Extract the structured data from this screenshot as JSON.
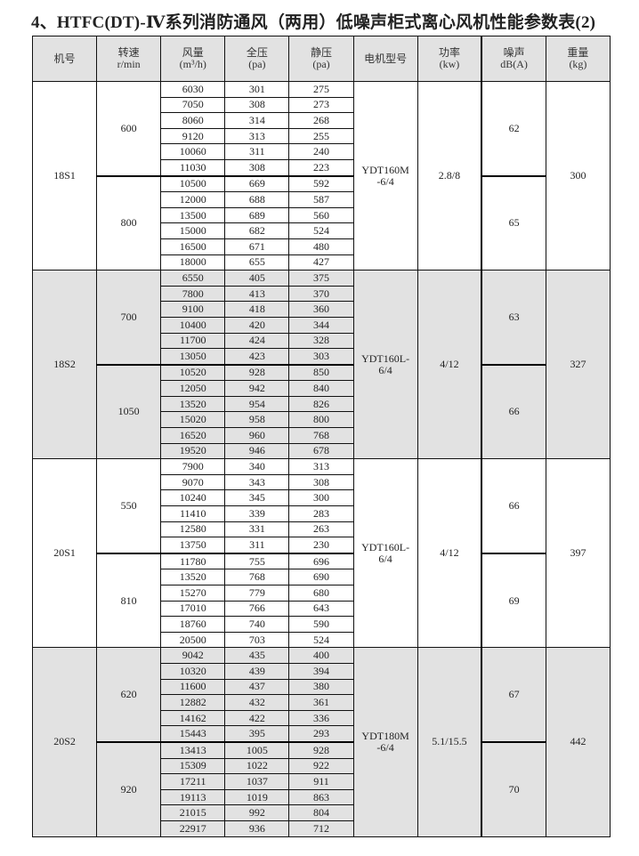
{
  "title": "4、HTFC(DT)-Ⅳ系列消防通风（两用）低噪声柜式离心风机性能参数表(2)",
  "headers": [
    {
      "l1": "机号",
      "l2": ""
    },
    {
      "l1": "转速",
      "l2": "r/min"
    },
    {
      "l1": "风量",
      "l2": "(m³/h)"
    },
    {
      "l1": "全压",
      "l2": "(pa)"
    },
    {
      "l1": "静压",
      "l2": "(pa)"
    },
    {
      "l1": "电机型号",
      "l2": ""
    },
    {
      "l1": "功率",
      "l2": "(kw)"
    },
    {
      "l1": "噪声",
      "l2": "dB(A)"
    },
    {
      "l1": "重量",
      "l2": "(kg)"
    }
  ],
  "groups": [
    {
      "model": "18S1",
      "motor": "YDT160M\n-6/4",
      "power": "2.8/8",
      "weight": "300",
      "shaded": false,
      "speeds": [
        {
          "rpm": "600",
          "noise": "62",
          "rows": [
            [
              "6030",
              "301",
              "275"
            ],
            [
              "7050",
              "308",
              "273"
            ],
            [
              "8060",
              "314",
              "268"
            ],
            [
              "9120",
              "313",
              "255"
            ],
            [
              "10060",
              "311",
              "240"
            ],
            [
              "11030",
              "308",
              "223"
            ]
          ]
        },
        {
          "rpm": "800",
          "noise": "65",
          "rows": [
            [
              "10500",
              "669",
              "592"
            ],
            [
              "12000",
              "688",
              "587"
            ],
            [
              "13500",
              "689",
              "560"
            ],
            [
              "15000",
              "682",
              "524"
            ],
            [
              "16500",
              "671",
              "480"
            ],
            [
              "18000",
              "655",
              "427"
            ]
          ]
        }
      ]
    },
    {
      "model": "18S2",
      "motor": "YDT160L-\n6/4",
      "power": "4/12",
      "weight": "327",
      "shaded": true,
      "speeds": [
        {
          "rpm": "700",
          "noise": "63",
          "rows": [
            [
              "6550",
              "405",
              "375"
            ],
            [
              "7800",
              "413",
              "370"
            ],
            [
              "9100",
              "418",
              "360"
            ],
            [
              "10400",
              "420",
              "344"
            ],
            [
              "11700",
              "424",
              "328"
            ],
            [
              "13050",
              "423",
              "303"
            ]
          ]
        },
        {
          "rpm": "1050",
          "noise": "66",
          "rows": [
            [
              "10520",
              "928",
              "850"
            ],
            [
              "12050",
              "942",
              "840"
            ],
            [
              "13520",
              "954",
              "826"
            ],
            [
              "15020",
              "958",
              "800"
            ],
            [
              "16520",
              "960",
              "768"
            ],
            [
              "19520",
              "946",
              "678"
            ]
          ]
        }
      ]
    },
    {
      "model": "20S1",
      "motor": "YDT160L-\n6/4",
      "power": "4/12",
      "weight": "397",
      "shaded": false,
      "speeds": [
        {
          "rpm": "550",
          "noise": "66",
          "rows": [
            [
              "7900",
              "340",
              "313"
            ],
            [
              "9070",
              "343",
              "308"
            ],
            [
              "10240",
              "345",
              "300"
            ],
            [
              "11410",
              "339",
              "283"
            ],
            [
              "12580",
              "331",
              "263"
            ],
            [
              "13750",
              "311",
              "230"
            ]
          ]
        },
        {
          "rpm": "810",
          "noise": "69",
          "rows": [
            [
              "11780",
              "755",
              "696"
            ],
            [
              "13520",
              "768",
              "690"
            ],
            [
              "15270",
              "779",
              "680"
            ],
            [
              "17010",
              "766",
              "643"
            ],
            [
              "18760",
              "740",
              "590"
            ],
            [
              "20500",
              "703",
              "524"
            ]
          ]
        }
      ]
    },
    {
      "model": "20S2",
      "motor": "YDT180M\n-6/4",
      "power": "5.1/15.5",
      "weight": "442",
      "shaded": true,
      "speeds": [
        {
          "rpm": "620",
          "noise": "67",
          "rows": [
            [
              "9042",
              "435",
              "400"
            ],
            [
              "10320",
              "439",
              "394"
            ],
            [
              "11600",
              "437",
              "380"
            ],
            [
              "12882",
              "432",
              "361"
            ],
            [
              "14162",
              "422",
              "336"
            ],
            [
              "15443",
              "395",
              "293"
            ]
          ]
        },
        {
          "rpm": "920",
          "noise": "70",
          "rows": [
            [
              "13413",
              "1005",
              "928"
            ],
            [
              "15309",
              "1022",
              "922"
            ],
            [
              "17211",
              "1037",
              "911"
            ],
            [
              "19113",
              "1019",
              "863"
            ],
            [
              "21015",
              "992",
              "804"
            ],
            [
              "22917",
              "936",
              "712"
            ]
          ]
        }
      ]
    }
  ]
}
